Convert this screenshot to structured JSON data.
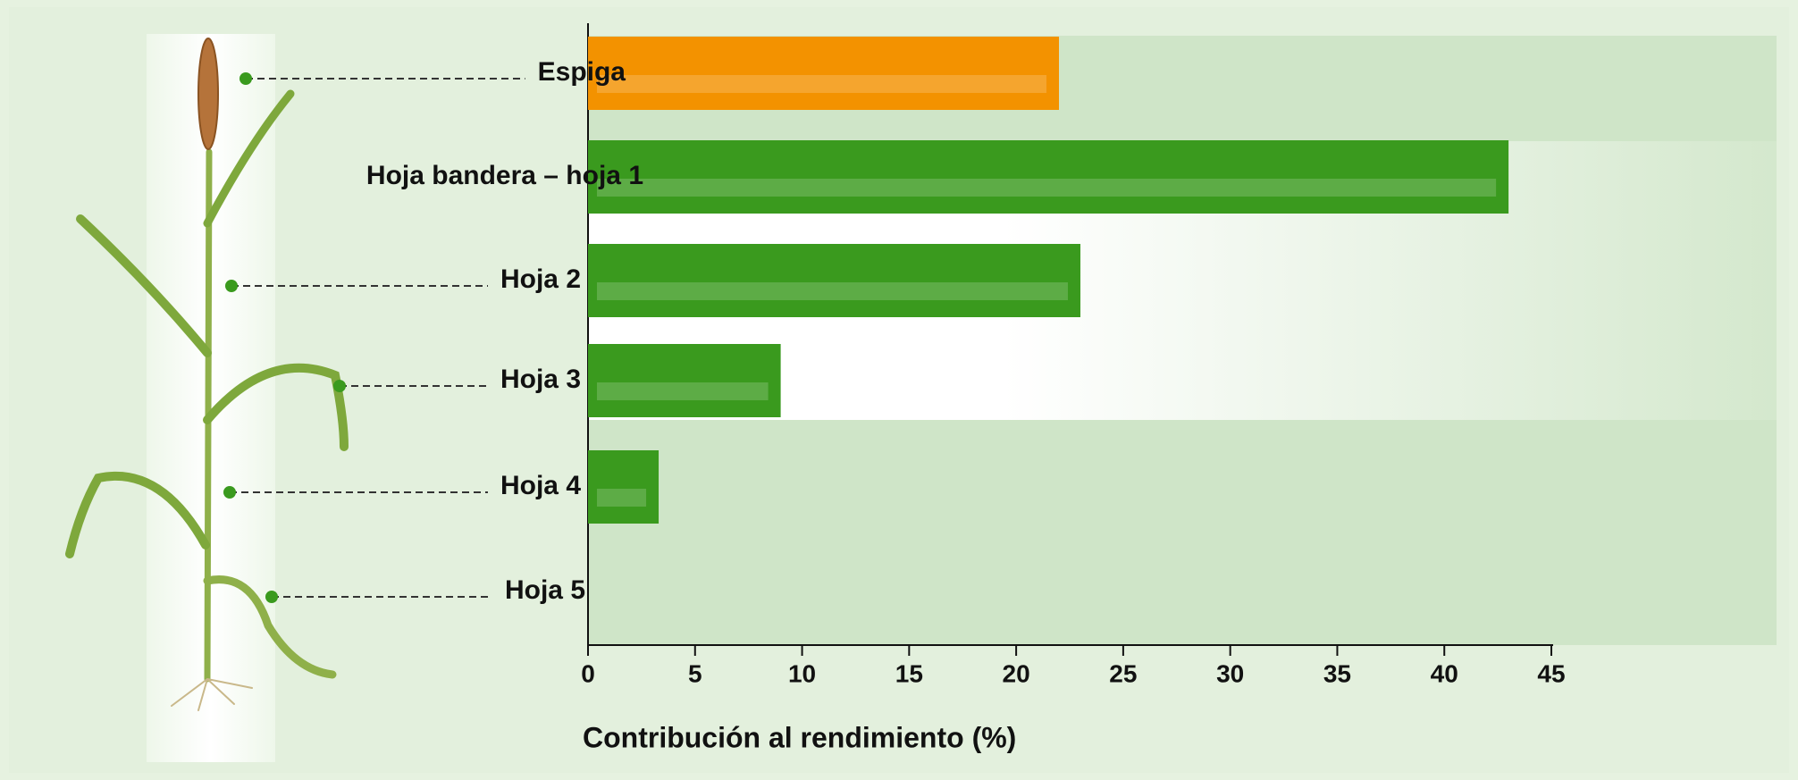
{
  "chart_data": {
    "type": "bar",
    "orientation": "horizontal",
    "categories": [
      "Espiga",
      "Hoja bandera – hoja 1",
      "Hoja 2",
      "Hoja 3",
      "Hoja 4",
      "Hoja  5"
    ],
    "values": [
      22,
      43,
      23,
      9,
      3.3,
      0
    ],
    "colors": [
      "#f39200",
      "#3a9a1e",
      "#3a9a1e",
      "#3a9a1e",
      "#3a9a1e",
      "#3a9a1e"
    ],
    "xlim": [
      0,
      45
    ],
    "xticks": [
      0,
      5,
      10,
      15,
      20,
      25,
      30,
      35,
      40,
      45
    ],
    "xlabel": "Contribución al rendimiento (%)"
  }
}
